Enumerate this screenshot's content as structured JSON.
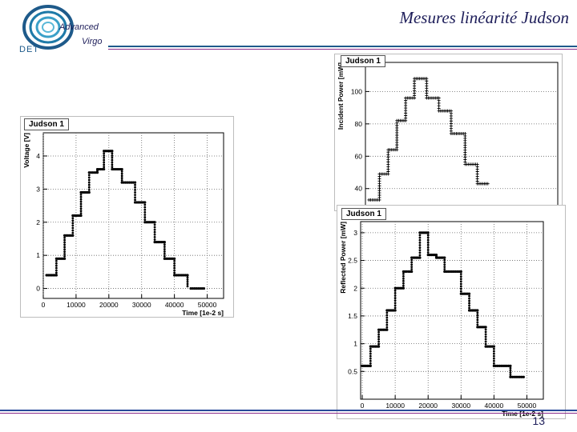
{
  "slide": {
    "title": "Mesures linéarité Judson",
    "page_number": "13",
    "logo": {
      "advanced": "Advanced",
      "virgo": "Virgo",
      "det": "DET"
    },
    "colors": {
      "title": "#1e1e5a",
      "rule_blue": "#2a4a9a",
      "rule_purple": "#8a2a8a"
    }
  },
  "chart_data": [
    {
      "type": "scatter",
      "title": "Judson 1",
      "xlabel": "Time [1e-2 s]",
      "ylabel": "Voltage [V]",
      "xlim": [
        0,
        55000
      ],
      "ylim": [
        -0.3,
        4.7
      ],
      "xticks": [
        0,
        10000,
        20000,
        30000,
        40000,
        50000
      ],
      "xtick_labels": [
        "0",
        "10000",
        "20000",
        "30000",
        "40000",
        "50000"
      ],
      "yticks": [
        0,
        1,
        2,
        3,
        4
      ],
      "ytick_labels": [
        "0",
        "1",
        "2",
        "3",
        "4"
      ],
      "grid": true,
      "steps": [
        {
          "x0": 1000,
          "x1": 4000,
          "y": 0.4
        },
        {
          "x0": 4000,
          "x1": 6500,
          "y": 0.9
        },
        {
          "x0": 6500,
          "x1": 9000,
          "y": 1.6
        },
        {
          "x0": 9000,
          "x1": 11500,
          "y": 2.2
        },
        {
          "x0": 11500,
          "x1": 14000,
          "y": 2.9
        },
        {
          "x0": 14000,
          "x1": 16500,
          "y": 3.5
        },
        {
          "x0": 16500,
          "x1": 18500,
          "y": 3.6
        },
        {
          "x0": 18500,
          "x1": 21000,
          "y": 4.15
        },
        {
          "x0": 21000,
          "x1": 24000,
          "y": 3.6
        },
        {
          "x0": 24000,
          "x1": 28000,
          "y": 3.2
        },
        {
          "x0": 28000,
          "x1": 31000,
          "y": 2.6
        },
        {
          "x0": 31000,
          "x1": 34000,
          "y": 2.0
        },
        {
          "x0": 34000,
          "x1": 37000,
          "y": 1.4
        },
        {
          "x0": 37000,
          "x1": 40000,
          "y": 0.9
        },
        {
          "x0": 40000,
          "x1": 44000,
          "y": 0.4
        },
        {
          "x0": 45000,
          "x1": 49000,
          "y": 0.0
        }
      ]
    },
    {
      "type": "scatter",
      "title": "Judson 1",
      "ylabel": "Incident Power [mW]",
      "xlim": [
        0,
        55000
      ],
      "ylim": [
        28,
        118
      ],
      "yticks": [
        40,
        60,
        80,
        100
      ],
      "ytick_labels": [
        "40",
        "60",
        "80",
        "100"
      ],
      "grid": true,
      "steps": [
        {
          "x0": 1000,
          "x1": 4000,
          "y": 33
        },
        {
          "x0": 4000,
          "x1": 6500,
          "y": 49
        },
        {
          "x0": 6500,
          "x1": 9000,
          "y": 64
        },
        {
          "x0": 9000,
          "x1": 11500,
          "y": 82
        },
        {
          "x0": 11500,
          "x1": 14000,
          "y": 96
        },
        {
          "x0": 14000,
          "x1": 17500,
          "y": 108
        },
        {
          "x0": 17500,
          "x1": 21000,
          "y": 96
        },
        {
          "x0": 21000,
          "x1": 24500,
          "y": 88
        },
        {
          "x0": 24500,
          "x1": 28500,
          "y": 74
        },
        {
          "x0": 28500,
          "x1": 32000,
          "y": 55
        },
        {
          "x0": 32000,
          "x1": 35000,
          "y": 43
        }
      ]
    },
    {
      "type": "scatter",
      "title": "Judson 1",
      "xlabel": "Time [1e-2 s]",
      "ylabel": "Reflected Power [mW]",
      "xlim": [
        -500,
        55000
      ],
      "ylim": [
        0,
        3.2
      ],
      "xticks": [
        0,
        10000,
        20000,
        30000,
        40000,
        50000
      ],
      "xtick_labels": [
        "0",
        "10000",
        "20000",
        "30000",
        "40000",
        "50000"
      ],
      "yticks": [
        0.5,
        1,
        1.5,
        2,
        2.5,
        3
      ],
      "ytick_labels": [
        "0.5",
        "1",
        "1.5",
        "2",
        "2.5",
        "3"
      ],
      "grid": true,
      "steps": [
        {
          "x0": 0,
          "x1": 2500,
          "y": 0.6
        },
        {
          "x0": 2500,
          "x1": 5000,
          "y": 0.95
        },
        {
          "x0": 5000,
          "x1": 7500,
          "y": 1.25
        },
        {
          "x0": 7500,
          "x1": 10000,
          "y": 1.6
        },
        {
          "x0": 10000,
          "x1": 12500,
          "y": 2.0
        },
        {
          "x0": 12500,
          "x1": 15000,
          "y": 2.3
        },
        {
          "x0": 15000,
          "x1": 17500,
          "y": 2.55
        },
        {
          "x0": 17500,
          "x1": 20000,
          "y": 3.0
        },
        {
          "x0": 20000,
          "x1": 22500,
          "y": 2.6
        },
        {
          "x0": 22500,
          "x1": 25000,
          "y": 2.55
        },
        {
          "x0": 25000,
          "x1": 30000,
          "y": 2.3
        },
        {
          "x0": 30000,
          "x1": 32500,
          "y": 1.9
        },
        {
          "x0": 32500,
          "x1": 35000,
          "y": 1.6
        },
        {
          "x0": 35000,
          "x1": 37500,
          "y": 1.3
        },
        {
          "x0": 37500,
          "x1": 40000,
          "y": 0.95
        },
        {
          "x0": 40000,
          "x1": 45000,
          "y": 0.6
        },
        {
          "x0": 45000,
          "x1": 49000,
          "y": 0.4
        }
      ]
    }
  ]
}
